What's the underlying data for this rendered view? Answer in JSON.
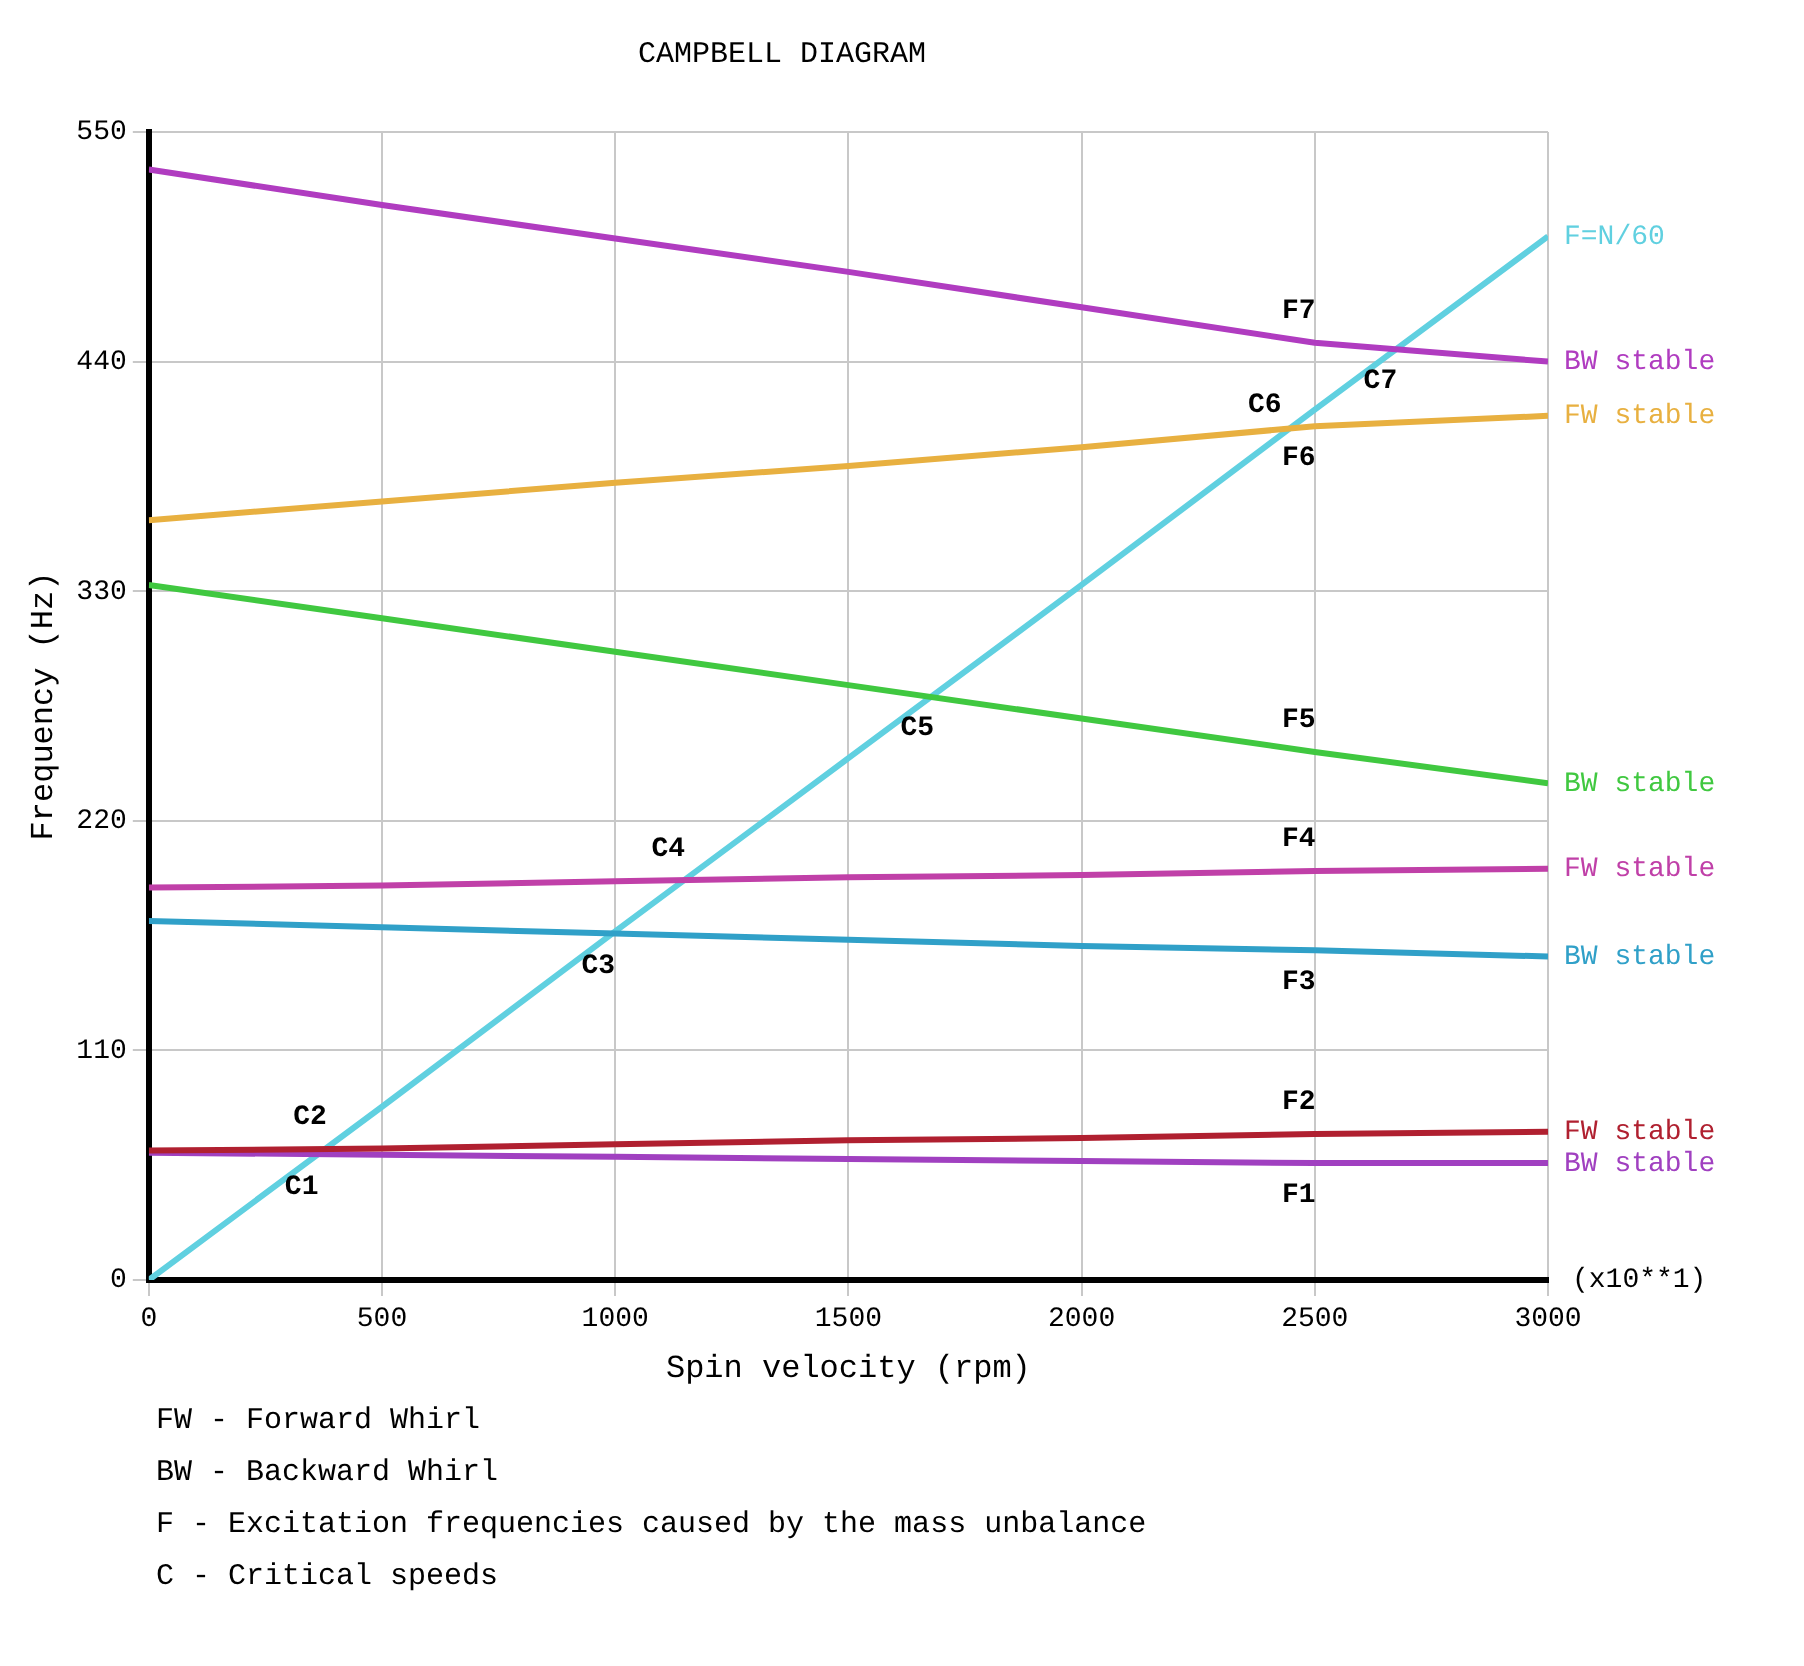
{
  "chart_data": {
    "type": "line",
    "title": "CAMPBELL DIAGRAM",
    "xlabel": "Spin velocity (rpm)",
    "ylabel": "Frequency (Hz)",
    "x": [
      0,
      500,
      1000,
      1500,
      2000,
      2500,
      3000
    ],
    "xlim": [
      0,
      3000
    ],
    "xticks": [
      0,
      500,
      1000,
      1500,
      2000,
      2500,
      3000
    ],
    "ylim": [
      0,
      550
    ],
    "yticks": [
      0,
      110,
      220,
      330,
      440,
      550
    ],
    "grid": true,
    "legend": false,
    "marker": "none",
    "line_style": "solid",
    "series": [
      {
        "name": "BW stable",
        "color": "#b03cc0",
        "values": [
          532,
          515,
          499,
          483,
          466,
          449,
          440
        ]
      },
      {
        "name": "FW stable",
        "color": "#e8b040",
        "values": [
          364,
          373,
          382,
          390,
          399,
          409,
          414
        ]
      },
      {
        "name": "BW stable",
        "color": "#40c840",
        "values": [
          333,
          317,
          301,
          285,
          269,
          253,
          238
        ]
      },
      {
        "name": "FW stable",
        "color": "#c040a8",
        "values": [
          188,
          189,
          191,
          193,
          194,
          196,
          197
        ]
      },
      {
        "name": "BW stable",
        "color": "#30a0c8",
        "values": [
          172,
          169,
          166,
          163,
          160,
          158,
          155
        ]
      },
      {
        "name": "FW stable",
        "color": "#b02030",
        "values": [
          62,
          63,
          65,
          67,
          68,
          70,
          71
        ]
      },
      {
        "name": "BW stable",
        "color": "#a040c0",
        "values": [
          61,
          60,
          59,
          58,
          57,
          56,
          56
        ]
      },
      {
        "name": "F=N/60",
        "color": "#60d0e0",
        "values": [
          0,
          83,
          167,
          250,
          333,
          417,
          500
        ]
      }
    ],
    "annotations": [
      {
        "text": "C1",
        "x": 362,
        "y": 60
      },
      {
        "text": "C2",
        "x": 380,
        "y": 63
      },
      {
        "text": "C3",
        "x": 998,
        "y": 166
      },
      {
        "text": "C4",
        "x": 1148,
        "y": 191
      },
      {
        "text": "C5",
        "x": 1682,
        "y": 280
      },
      {
        "text": "C6",
        "x": 2427,
        "y": 404
      },
      {
        "text": "C7",
        "x": 2675,
        "y": 446
      },
      {
        "text": "F2",
        "x": 2500,
        "y": 70
      },
      {
        "text": "F1",
        "x": 2500,
        "y": 56
      },
      {
        "text": "F4",
        "x": 2500,
        "y": 196
      },
      {
        "text": "F3",
        "x": 2500,
        "y": 158
      },
      {
        "text": "F5",
        "x": 2500,
        "y": 253
      },
      {
        "text": "F6",
        "x": 2500,
        "y": 409
      },
      {
        "text": "F7",
        "x": 2500,
        "y": 449
      },
      "(x10**1)",
      "FW - Forward Whirl",
      "BW - Backward Whirl",
      "F - Excitation frequencies caused by the mass unbalance",
      "C - Critical speeds"
    ]
  }
}
